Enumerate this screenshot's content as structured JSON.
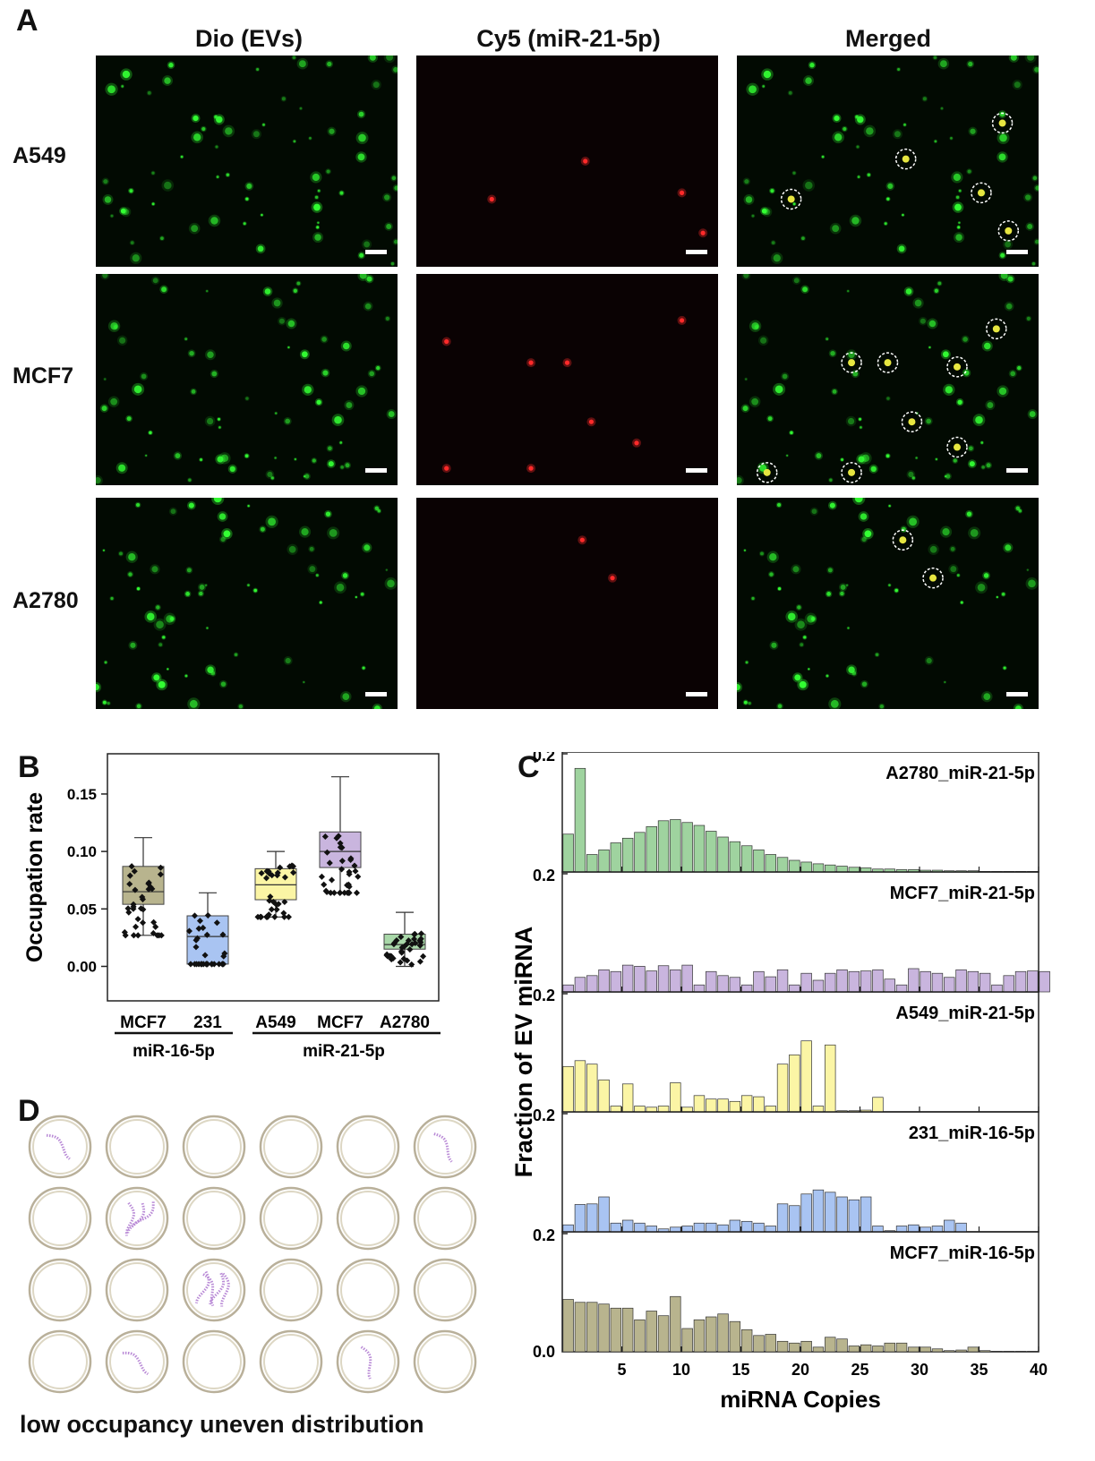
{
  "panel_labels": {
    "a": "A",
    "b": "B",
    "c": "C",
    "d": "D"
  },
  "panelA": {
    "column_titles": [
      "Dio (EVs)",
      "Cy5 (miR-21-5p)",
      "Merged"
    ],
    "row_labels": [
      "A549",
      "MCF7",
      "A2780"
    ],
    "colors": {
      "green": "#33ff33",
      "red": "#ff2a2a",
      "circle": "#ffffff"
    }
  },
  "chart_data": [
    {
      "type": "box",
      "panel": "B",
      "ylabel": "Occupation rate",
      "yticks": [
        "0.00",
        "0.05",
        "0.10",
        "0.15"
      ],
      "ylim": [
        -0.03,
        0.185
      ],
      "group_labels": {
        "left": "miR-16-5p",
        "right": "miR-21-5p"
      },
      "boxes": [
        {
          "label": "MCF7",
          "group": "miR-16-5p",
          "color": "#b8b48e",
          "min": 0.027,
          "q1": 0.054,
          "median": 0.065,
          "q3": 0.087,
          "max": 0.112
        },
        {
          "label": "231",
          "group": "miR-16-5p",
          "color": "#a9c4f2",
          "min": 0.002,
          "q1": 0.002,
          "median": 0.026,
          "q3": 0.044,
          "max": 0.064
        },
        {
          "label": "A549",
          "group": "miR-21-5p",
          "color": "#fbf5a5",
          "min": 0.043,
          "q1": 0.058,
          "median": 0.071,
          "q3": 0.085,
          "max": 0.1
        },
        {
          "label": "MCF7",
          "group": "miR-21-5p",
          "color": "#c9b5de",
          "min": 0.064,
          "q1": 0.086,
          "median": 0.1,
          "q3": 0.117,
          "max": 0.165
        },
        {
          "label": "A2780",
          "group": "miR-21-5p",
          "color": "#a9d8a9",
          "min": 0.0,
          "q1": 0.015,
          "median": 0.019,
          "q3": 0.028,
          "max": 0.047
        }
      ]
    },
    {
      "type": "bar",
      "panel": "C",
      "ylabel": "Fraction of EV miRNA",
      "xlabel": "miRNA Copies",
      "xticks": [
        5,
        10,
        15,
        20,
        25,
        30,
        35,
        40
      ],
      "xlim": [
        0,
        40
      ],
      "ylim": [
        0,
        0.2
      ],
      "ytick_label": "0.2",
      "bottom_ytick_label": "0.0",
      "series": [
        {
          "name": "A2780_miR-21-5p",
          "color": "#9fd39f",
          "values": [
            0.065,
            0.178,
            0.03,
            0.038,
            0.05,
            0.058,
            0.068,
            0.078,
            0.088,
            0.09,
            0.085,
            0.08,
            0.07,
            0.06,
            0.052,
            0.045,
            0.038,
            0.03,
            0.025,
            0.02,
            0.017,
            0.014,
            0.012,
            0.01,
            0.008,
            0.007,
            0.005,
            0.005,
            0.004,
            0.004,
            0.003,
            0.003,
            0.002,
            0.002,
            0.002,
            0.001,
            0.001,
            0.001,
            0.001,
            0.001
          ]
        },
        {
          "name": "MCF7_miR-21-5p",
          "color": "#c9b5de",
          "values": [
            0.012,
            0.025,
            0.028,
            0.038,
            0.035,
            0.046,
            0.044,
            0.036,
            0.045,
            0.038,
            0.046,
            0.012,
            0.035,
            0.028,
            0.025,
            0.012,
            0.035,
            0.026,
            0.038,
            0.012,
            0.032,
            0.02,
            0.032,
            0.038,
            0.035,
            0.036,
            0.038,
            0.022,
            0.012,
            0.04,
            0.035,
            0.032,
            0.025,
            0.038,
            0.035,
            0.032,
            0.012,
            0.028,
            0.035,
            0.036,
            0.035
          ]
        },
        {
          "name": "A549_miR-21-5p",
          "color": "#fbf5a5",
          "values": [
            0.078,
            0.088,
            0.082,
            0.055,
            0.01,
            0.048,
            0.01,
            0.008,
            0.01,
            0.05,
            0.008,
            0.028,
            0.022,
            0.022,
            0.018,
            0.028,
            0.026,
            0.01,
            0.082,
            0.098,
            0.122,
            0.01,
            0.115,
            0.002,
            0.002,
            0.003,
            0.025
          ]
        },
        {
          "name": "231_miR-16-5p",
          "color": "#a9c4f2",
          "values": [
            0.012,
            0.047,
            0.048,
            0.06,
            0.015,
            0.02,
            0.015,
            0.01,
            0.005,
            0.008,
            0.01,
            0.015,
            0.015,
            0.012,
            0.02,
            0.018,
            0.015,
            0.01,
            0.048,
            0.045,
            0.065,
            0.072,
            0.068,
            0.06,
            0.055,
            0.06,
            0.01,
            0.002,
            0.01,
            0.012,
            0.008,
            0.01,
            0.02,
            0.015
          ]
        },
        {
          "name": "MCF7_miR-16-5p",
          "color": "#b8b48e",
          "values": [
            0.09,
            0.085,
            0.085,
            0.082,
            0.075,
            0.075,
            0.055,
            0.07,
            0.062,
            0.095,
            0.04,
            0.055,
            0.06,
            0.065,
            0.052,
            0.038,
            0.028,
            0.03,
            0.018,
            0.015,
            0.018,
            0.008,
            0.025,
            0.022,
            0.01,
            0.012,
            0.01,
            0.015,
            0.015,
            0.008,
            0.008,
            0.005,
            0.002,
            0.003,
            0.008,
            0.002,
            0.001,
            0.001,
            0.001,
            0.001
          ]
        }
      ]
    }
  ],
  "panelD": {
    "caption": "low occupancy uneven distribution",
    "grid_rows": 4,
    "grid_cols": 6,
    "colors": {
      "ring": "#ddd7c4",
      "ring_inner": "#b9b09a",
      "rna": "#b98ad6"
    },
    "occupancy": [
      [
        1,
        0,
        0,
        0,
        0,
        1
      ],
      [
        0,
        3,
        0,
        0,
        0,
        0
      ],
      [
        0,
        0,
        4,
        0,
        0,
        0
      ],
      [
        0,
        1,
        0,
        0,
        1,
        0
      ]
    ]
  }
}
